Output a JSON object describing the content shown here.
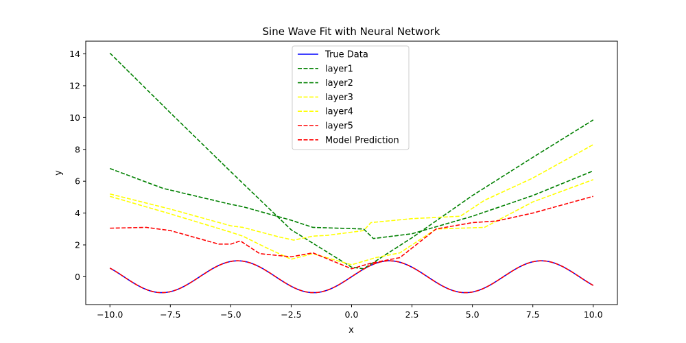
{
  "chart_data": {
    "type": "line",
    "title": "Sine Wave Fit with Neural Network",
    "xlabel": "x",
    "ylabel": "y",
    "xlim": [
      -11.0,
      11.0
    ],
    "ylim": [
      -1.75,
      14.8
    ],
    "xticks": [
      -10.0,
      -7.5,
      -5.0,
      -2.5,
      0.0,
      2.5,
      5.0,
      7.5,
      10.0
    ],
    "xtick_labels": [
      "−10.0",
      "−7.5",
      "−5.0",
      "−2.5",
      "0.0",
      "2.5",
      "5.0",
      "7.5",
      "10.0"
    ],
    "yticks": [
      0,
      2,
      4,
      6,
      8,
      10,
      12,
      14
    ],
    "ytick_labels": [
      "0",
      "2",
      "4",
      "6",
      "8",
      "10",
      "12",
      "14"
    ],
    "grid": false,
    "legend_position": "top-center",
    "series": [
      {
        "name": "True Data",
        "color": "#0000ff",
        "style": "solid",
        "function": "sin",
        "x_range": [
          -10,
          10
        ]
      },
      {
        "name": "layer1",
        "color": "#008000",
        "style": "dashed",
        "points": [
          [
            -10,
            14.05
          ],
          [
            -7.5,
            10.3
          ],
          [
            -5,
            6.6
          ],
          [
            -2.5,
            2.95
          ],
          [
            0,
            0.6
          ],
          [
            0.5,
            0.5
          ],
          [
            2.5,
            2.45
          ],
          [
            5,
            5.1
          ],
          [
            7.5,
            7.5
          ],
          [
            10,
            9.85
          ]
        ]
      },
      {
        "name": "layer2",
        "color": "#008000",
        "style": "dashed",
        "points": [
          [
            -10,
            6.8
          ],
          [
            -7.8,
            5.55
          ],
          [
            -5,
            4.55
          ],
          [
            -4.5,
            4.4
          ],
          [
            -2.5,
            3.55
          ],
          [
            -1.6,
            3.1
          ],
          [
            0.5,
            3.0
          ],
          [
            0.9,
            2.4
          ],
          [
            2.5,
            2.7
          ],
          [
            5,
            3.8
          ],
          [
            7.5,
            5.1
          ],
          [
            10,
            6.65
          ]
        ]
      },
      {
        "name": "layer3",
        "color": "#ffff00",
        "style": "dashed",
        "points": [
          [
            -10,
            5.2
          ],
          [
            -7.5,
            4.25
          ],
          [
            -5,
            3.2
          ],
          [
            -4.5,
            3.1
          ],
          [
            -3,
            2.5
          ],
          [
            -2.4,
            2.3
          ],
          [
            -1.6,
            2.55
          ],
          [
            -1,
            2.6
          ],
          [
            0.5,
            2.9
          ],
          [
            0.8,
            3.4
          ],
          [
            2.5,
            3.65
          ],
          [
            4.5,
            3.8
          ],
          [
            5.5,
            4.8
          ],
          [
            7.5,
            6.2
          ],
          [
            10,
            8.3
          ]
        ]
      },
      {
        "name": "layer4",
        "color": "#ffff00",
        "style": "dashed",
        "points": [
          [
            -10,
            5.05
          ],
          [
            -7.5,
            3.95
          ],
          [
            -5,
            2.8
          ],
          [
            -4.5,
            2.55
          ],
          [
            -3.5,
            1.8
          ],
          [
            -2.5,
            1.1
          ],
          [
            -1.6,
            1.45
          ],
          [
            0,
            0.75
          ],
          [
            1,
            1.2
          ],
          [
            2,
            1.5
          ],
          [
            3.5,
            3.0
          ],
          [
            5.5,
            3.1
          ],
          [
            7.5,
            4.7
          ],
          [
            10,
            6.1
          ]
        ]
      },
      {
        "name": "layer5",
        "color": "#ff0000",
        "style": "dashed",
        "points": [
          [
            -10,
            3.05
          ],
          [
            -8.5,
            3.1
          ],
          [
            -7.5,
            2.9
          ],
          [
            -5.5,
            2.05
          ],
          [
            -5,
            2.05
          ],
          [
            -4.6,
            2.25
          ],
          [
            -3.8,
            1.45
          ],
          [
            -2.5,
            1.25
          ],
          [
            -1.6,
            1.5
          ],
          [
            0,
            0.5
          ],
          [
            0.8,
            0.85
          ],
          [
            2,
            1.2
          ],
          [
            3.5,
            3.0
          ],
          [
            5,
            3.4
          ],
          [
            6,
            3.5
          ],
          [
            7.5,
            4.0
          ],
          [
            10,
            5.05
          ]
        ]
      },
      {
        "name": "Model Prediction",
        "color": "#ff0000",
        "style": "dashed",
        "function": "sin",
        "x_range": [
          -10,
          10
        ]
      }
    ]
  }
}
